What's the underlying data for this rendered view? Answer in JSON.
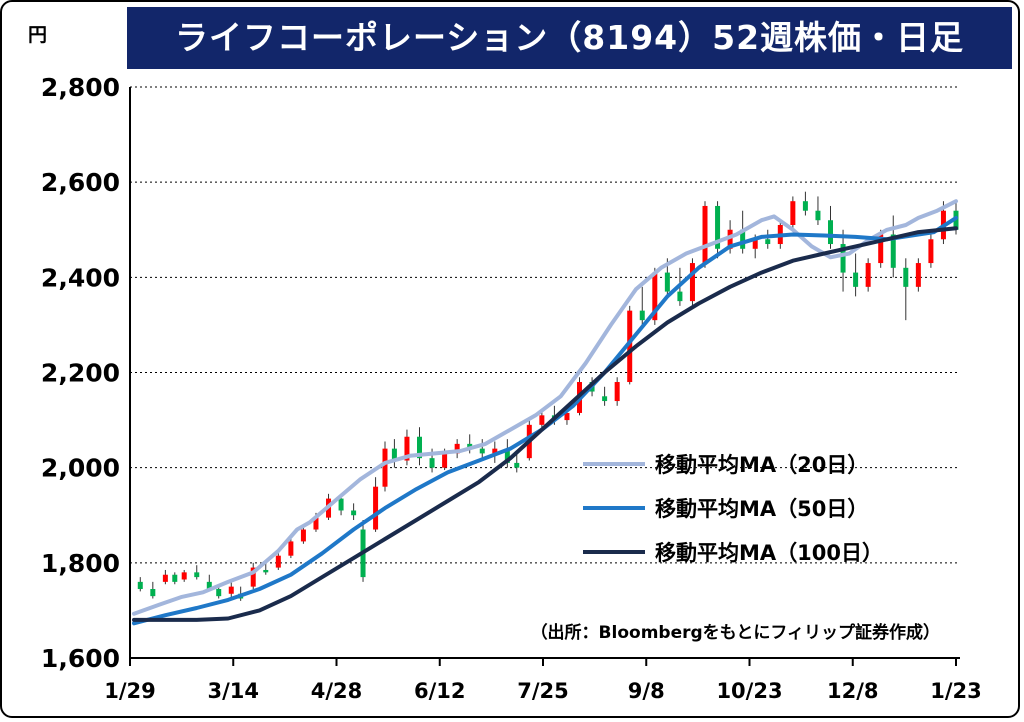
{
  "chart_data": {
    "type": "line",
    "title": "ライフコーポレーション（8194）52週株価・日足",
    "unit_label": "円",
    "ylim": [
      1600,
      2800
    ],
    "yticks": [
      1600,
      1800,
      2000,
      2200,
      2400,
      2600,
      2800
    ],
    "ytick_labels": [
      "1,600",
      "1,800",
      "2,000",
      "2,200",
      "2,400",
      "2,600",
      "2,800"
    ],
    "xtick_labels": [
      "1/29",
      "3/14",
      "4/28",
      "6/12",
      "7/25",
      "9/8",
      "10/23",
      "12/8",
      "1/23"
    ],
    "xlim": [
      0,
      250
    ],
    "grid": "horizontal",
    "legend_position": "right",
    "source_note": "（出所：Bloombergをもとにフィリップ証券作成）",
    "candle_colors": {
      "up": "#ff0000",
      "down": "#00b050"
    },
    "series": [
      {
        "name": "移動平均MA（20日）",
        "color": "#a3b6dc",
        "points": [
          [
            0,
            1693
          ],
          [
            8,
            1712
          ],
          [
            15,
            1728
          ],
          [
            22,
            1738
          ],
          [
            30,
            1760
          ],
          [
            38,
            1780
          ],
          [
            46,
            1825
          ],
          [
            52,
            1870
          ],
          [
            56,
            1885
          ],
          [
            64,
            1930
          ],
          [
            72,
            1975
          ],
          [
            80,
            2010
          ],
          [
            88,
            2025
          ],
          [
            96,
            2030
          ],
          [
            104,
            2035
          ],
          [
            112,
            2050
          ],
          [
            120,
            2080
          ],
          [
            128,
            2110
          ],
          [
            136,
            2150
          ],
          [
            144,
            2220
          ],
          [
            152,
            2300
          ],
          [
            160,
            2375
          ],
          [
            168,
            2420
          ],
          [
            176,
            2450
          ],
          [
            184,
            2470
          ],
          [
            192,
            2490
          ],
          [
            200,
            2520
          ],
          [
            204,
            2528
          ],
          [
            210,
            2500
          ],
          [
            216,
            2465
          ],
          [
            222,
            2442
          ],
          [
            228,
            2450
          ],
          [
            234,
            2478
          ],
          [
            240,
            2500
          ],
          [
            246,
            2510
          ],
          [
            250,
            2525
          ],
          [
            256,
            2540
          ],
          [
            262,
            2560
          ]
        ]
      },
      {
        "name": "移動平均MA（50日）",
        "color": "#1f78c8",
        "points": [
          [
            0,
            1673
          ],
          [
            10,
            1690
          ],
          [
            20,
            1705
          ],
          [
            30,
            1722
          ],
          [
            40,
            1745
          ],
          [
            50,
            1775
          ],
          [
            60,
            1820
          ],
          [
            70,
            1870
          ],
          [
            80,
            1915
          ],
          [
            90,
            1955
          ],
          [
            100,
            1990
          ],
          [
            110,
            2015
          ],
          [
            120,
            2040
          ],
          [
            130,
            2080
          ],
          [
            140,
            2130
          ],
          [
            150,
            2200
          ],
          [
            160,
            2280
          ],
          [
            170,
            2360
          ],
          [
            180,
            2420
          ],
          [
            190,
            2465
          ],
          [
            200,
            2485
          ],
          [
            210,
            2490
          ],
          [
            220,
            2488
          ],
          [
            230,
            2485
          ],
          [
            240,
            2480
          ],
          [
            250,
            2490
          ],
          [
            255,
            2495
          ],
          [
            262,
            2525
          ]
        ]
      },
      {
        "name": "移動平均MA（100日）",
        "color": "#1a2b4c",
        "points": [
          [
            0,
            1680
          ],
          [
            10,
            1680
          ],
          [
            20,
            1680
          ],
          [
            30,
            1683
          ],
          [
            40,
            1700
          ],
          [
            50,
            1730
          ],
          [
            60,
            1770
          ],
          [
            70,
            1810
          ],
          [
            80,
            1850
          ],
          [
            90,
            1890
          ],
          [
            100,
            1930
          ],
          [
            110,
            1970
          ],
          [
            120,
            2020
          ],
          [
            130,
            2080
          ],
          [
            140,
            2140
          ],
          [
            150,
            2200
          ],
          [
            160,
            2255
          ],
          [
            170,
            2305
          ],
          [
            180,
            2345
          ],
          [
            190,
            2380
          ],
          [
            200,
            2410
          ],
          [
            210,
            2435
          ],
          [
            220,
            2450
          ],
          [
            230,
            2465
          ],
          [
            240,
            2480
          ],
          [
            250,
            2495
          ],
          [
            262,
            2503
          ]
        ]
      }
    ],
    "candles": [
      {
        "x": 2,
        "o": 1760,
        "h": 1770,
        "l": 1740,
        "c": 1745
      },
      {
        "x": 6,
        "o": 1745,
        "h": 1760,
        "l": 1725,
        "c": 1730
      },
      {
        "x": 10,
        "o": 1760,
        "h": 1785,
        "l": 1755,
        "c": 1775
      },
      {
        "x": 13,
        "o": 1775,
        "h": 1780,
        "l": 1755,
        "c": 1760
      },
      {
        "x": 16,
        "o": 1765,
        "h": 1785,
        "l": 1760,
        "c": 1780
      },
      {
        "x": 20,
        "o": 1780,
        "h": 1795,
        "l": 1765,
        "c": 1770
      },
      {
        "x": 24,
        "o": 1760,
        "h": 1775,
        "l": 1740,
        "c": 1745
      },
      {
        "x": 27,
        "o": 1745,
        "h": 1755,
        "l": 1725,
        "c": 1730
      },
      {
        "x": 31,
        "o": 1735,
        "h": 1760,
        "l": 1725,
        "c": 1750
      },
      {
        "x": 34,
        "o": 1735,
        "h": 1750,
        "l": 1720,
        "c": 1725
      },
      {
        "x": 38,
        "o": 1750,
        "h": 1800,
        "l": 1745,
        "c": 1790
      },
      {
        "x": 42,
        "o": 1785,
        "h": 1800,
        "l": 1775,
        "c": 1780
      },
      {
        "x": 46,
        "o": 1790,
        "h": 1820,
        "l": 1785,
        "c": 1815
      },
      {
        "x": 50,
        "o": 1815,
        "h": 1850,
        "l": 1810,
        "c": 1845
      },
      {
        "x": 54,
        "o": 1845,
        "h": 1880,
        "l": 1840,
        "c": 1870
      },
      {
        "x": 58,
        "o": 1870,
        "h": 1905,
        "l": 1865,
        "c": 1895
      },
      {
        "x": 62,
        "o": 1895,
        "h": 1945,
        "l": 1890,
        "c": 1935
      },
      {
        "x": 66,
        "o": 1935,
        "h": 1945,
        "l": 1900,
        "c": 1910
      },
      {
        "x": 70,
        "o": 1910,
        "h": 1925,
        "l": 1890,
        "c": 1900
      },
      {
        "x": 73,
        "o": 1870,
        "h": 1890,
        "l": 1760,
        "c": 1770
      },
      {
        "x": 77,
        "o": 1870,
        "h": 1980,
        "l": 1865,
        "c": 1960
      },
      {
        "x": 80,
        "o": 1960,
        "h": 2055,
        "l": 1950,
        "c": 2040
      },
      {
        "x": 83,
        "o": 2040,
        "h": 2060,
        "l": 2000,
        "c": 2015
      },
      {
        "x": 87,
        "o": 2015,
        "h": 2080,
        "l": 2005,
        "c": 2065
      },
      {
        "x": 91,
        "o": 2065,
        "h": 2085,
        "l": 2005,
        "c": 2020
      },
      {
        "x": 95,
        "o": 2020,
        "h": 2040,
        "l": 1990,
        "c": 2000
      },
      {
        "x": 99,
        "o": 2000,
        "h": 2040,
        "l": 1995,
        "c": 2030
      },
      {
        "x": 103,
        "o": 2030,
        "h": 2060,
        "l": 2020,
        "c": 2050
      },
      {
        "x": 107,
        "o": 2050,
        "h": 2070,
        "l": 2030,
        "c": 2040
      },
      {
        "x": 111,
        "o": 2040,
        "h": 2060,
        "l": 2020,
        "c": 2030
      },
      {
        "x": 115,
        "o": 2030,
        "h": 2055,
        "l": 2010,
        "c": 2040
      },
      {
        "x": 119,
        "o": 2040,
        "h": 2060,
        "l": 2000,
        "c": 2010
      },
      {
        "x": 122,
        "o": 2010,
        "h": 2030,
        "l": 1990,
        "c": 2000
      },
      {
        "x": 126,
        "o": 2020,
        "h": 2100,
        "l": 2015,
        "c": 2090
      },
      {
        "x": 130,
        "o": 2090,
        "h": 2120,
        "l": 2080,
        "c": 2110
      },
      {
        "x": 134,
        "o": 2110,
        "h": 2130,
        "l": 2090,
        "c": 2100
      },
      {
        "x": 138,
        "o": 2100,
        "h": 2120,
        "l": 2090,
        "c": 2115
      },
      {
        "x": 142,
        "o": 2115,
        "h": 2190,
        "l": 2110,
        "c": 2180
      },
      {
        "x": 146,
        "o": 2180,
        "h": 2190,
        "l": 2150,
        "c": 2160
      },
      {
        "x": 150,
        "o": 2150,
        "h": 2170,
        "l": 2130,
        "c": 2140
      },
      {
        "x": 154,
        "o": 2140,
        "h": 2190,
        "l": 2130,
        "c": 2180
      },
      {
        "x": 158,
        "o": 2180,
        "h": 2340,
        "l": 2175,
        "c": 2330
      },
      {
        "x": 162,
        "o": 2330,
        "h": 2380,
        "l": 2300,
        "c": 2310
      },
      {
        "x": 166,
        "o": 2310,
        "h": 2420,
        "l": 2300,
        "c": 2410
      },
      {
        "x": 170,
        "o": 2410,
        "h": 2440,
        "l": 2360,
        "c": 2370
      },
      {
        "x": 174,
        "o": 2370,
        "h": 2420,
        "l": 2340,
        "c": 2350
      },
      {
        "x": 178,
        "o": 2350,
        "h": 2440,
        "l": 2340,
        "c": 2430
      },
      {
        "x": 182,
        "o": 2430,
        "h": 2560,
        "l": 2420,
        "c": 2550
      },
      {
        "x": 186,
        "o": 2550,
        "h": 2560,
        "l": 2440,
        "c": 2460
      },
      {
        "x": 190,
        "o": 2460,
        "h": 2520,
        "l": 2450,
        "c": 2500
      },
      {
        "x": 194,
        "o": 2500,
        "h": 2540,
        "l": 2450,
        "c": 2460
      },
      {
        "x": 198,
        "o": 2460,
        "h": 2490,
        "l": 2440,
        "c": 2480
      },
      {
        "x": 202,
        "o": 2480,
        "h": 2500,
        "l": 2460,
        "c": 2470
      },
      {
        "x": 206,
        "o": 2470,
        "h": 2520,
        "l": 2460,
        "c": 2510
      },
      {
        "x": 210,
        "o": 2510,
        "h": 2570,
        "l": 2500,
        "c": 2560
      },
      {
        "x": 214,
        "o": 2560,
        "h": 2580,
        "l": 2530,
        "c": 2540
      },
      {
        "x": 218,
        "o": 2540,
        "h": 2570,
        "l": 2510,
        "c": 2520
      },
      {
        "x": 222,
        "o": 2520,
        "h": 2550,
        "l": 2460,
        "c": 2470
      },
      {
        "x": 226,
        "o": 2470,
        "h": 2500,
        "l": 2370,
        "c": 2410
      },
      {
        "x": 230,
        "o": 2410,
        "h": 2450,
        "l": 2360,
        "c": 2380
      },
      {
        "x": 234,
        "o": 2380,
        "h": 2440,
        "l": 2370,
        "c": 2430
      },
      {
        "x": 238,
        "o": 2430,
        "h": 2500,
        "l": 2420,
        "c": 2490
      },
      {
        "x": 242,
        "o": 2490,
        "h": 2530,
        "l": 2400,
        "c": 2420
      },
      {
        "x": 246,
        "o": 2420,
        "h": 2440,
        "l": 2310,
        "c": 2380
      },
      {
        "x": 250,
        "o": 2380,
        "h": 2440,
        "l": 2370,
        "c": 2430
      },
      {
        "x": 254,
        "o": 2430,
        "h": 2490,
        "l": 2420,
        "c": 2480
      },
      {
        "x": 258,
        "o": 2480,
        "h": 2560,
        "l": 2470,
        "c": 2540
      },
      {
        "x": 262,
        "o": 2540,
        "h": 2560,
        "l": 2490,
        "c": 2500
      }
    ]
  }
}
